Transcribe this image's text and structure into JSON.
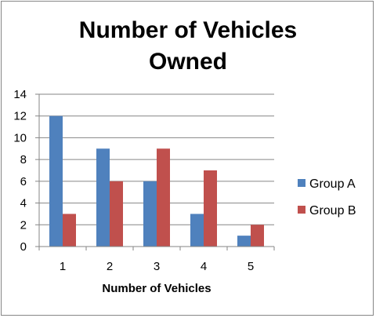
{
  "chart_data": {
    "type": "bar",
    "title_lines": [
      "Number of Vehicles",
      "Owned"
    ],
    "xlabel": "Number of Vehicles",
    "ylabel": "",
    "categories": [
      "1",
      "2",
      "3",
      "4",
      "5"
    ],
    "series": [
      {
        "name": "Group A",
        "color": "#4F81BD",
        "values": [
          12,
          9,
          6,
          3,
          1
        ]
      },
      {
        "name": "Group B",
        "color": "#C0504D",
        "values": [
          3,
          6,
          9,
          7,
          2
        ]
      }
    ],
    "ylim": [
      0,
      14
    ],
    "yticks": [
      0,
      2,
      4,
      6,
      8,
      10,
      12,
      14
    ],
    "grid": true,
    "legend_position": "right"
  }
}
